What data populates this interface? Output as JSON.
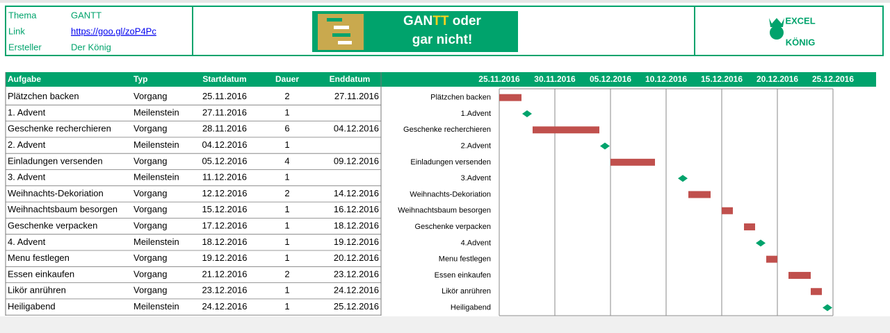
{
  "header": {
    "rows": [
      [
        "Thema",
        "GANTT"
      ],
      [
        "Link",
        "https://goo.gl/zoP4Pc"
      ],
      [
        "Ersteller",
        "Der König"
      ]
    ],
    "banner": {
      "line1": [
        "GAN",
        "TT",
        " oder"
      ],
      "line2": "gar nicht!"
    },
    "logo": [
      "EXCEL",
      "KÖNIG"
    ]
  },
  "table": {
    "columns": [
      "Aufgabe",
      "Typ",
      "Startdatum",
      "Dauer",
      "Enddatum"
    ],
    "rows": [
      [
        "Plätzchen backen",
        "Vorgang",
        "25.11.2016",
        2,
        "27.11.2016"
      ],
      [
        "1. Advent",
        "Meilenstein",
        "27.11.2016",
        1,
        null
      ],
      [
        "Geschenke recherchieren",
        "Vorgang",
        "28.11.2016",
        6,
        "04.12.2016"
      ],
      [
        "2. Advent",
        "Meilenstein",
        "04.12.2016",
        1,
        null
      ],
      [
        "Einladungen versenden",
        "Vorgang",
        "05.12.2016",
        4,
        "09.12.2016"
      ],
      [
        "3. Advent",
        "Meilenstein",
        "11.12.2016",
        1,
        null
      ],
      [
        "Weihnachts-Dekoriation",
        "Vorgang",
        "12.12.2016",
        2,
        "14.12.2016"
      ],
      [
        "Weihnachtsbaum besorgen",
        "Vorgang",
        "15.12.2016",
        1,
        "16.12.2016"
      ],
      [
        "Geschenke verpacken",
        "Vorgang",
        "17.12.2016",
        1,
        "18.12.2016"
      ],
      [
        "4. Advent",
        "Meilenstein",
        "18.12.2016",
        1,
        "19.12.2016"
      ],
      [
        "Menu festlegen",
        "Vorgang",
        "19.12.2016",
        1,
        "20.12.2016"
      ],
      [
        "Essen einkaufen",
        "Vorgang",
        "21.12.2016",
        2,
        "23.12.2016"
      ],
      [
        "Likör anrühren",
        "Vorgang",
        "23.12.2016",
        1,
        "24.12.2016"
      ],
      [
        "Heiligabend",
        "Meilenstein",
        "24.12.2016",
        1,
        "25.12.2016"
      ]
    ]
  },
  "chart_data": {
    "type": "gantt",
    "categories": [
      "Plätzchen backen",
      "1.Advent",
      "Geschenke recherchieren",
      "2.Advent",
      "Einladungen versenden",
      "3.Advent",
      "Weihnachts-Dekoriation",
      "Weihnachtsbaum besorgen",
      "Geschenke verpacken",
      "4.Advent",
      "Menu festlegen",
      "Essen einkaufen",
      "Likör anrühren",
      "Heiligabend"
    ],
    "starts": [
      "25.11.2016",
      "27.11.2016",
      "28.11.2016",
      "04.12.2016",
      "05.12.2016",
      "11.12.2016",
      "12.12.2016",
      "15.12.2016",
      "17.12.2016",
      "18.12.2016",
      "19.12.2016",
      "21.12.2016",
      "23.12.2016",
      "24.12.2016"
    ],
    "durations": [
      2,
      1,
      6,
      1,
      4,
      1,
      2,
      1,
      1,
      1,
      1,
      2,
      1,
      1
    ],
    "kinds": [
      "Vorgang",
      "Meilenstein",
      "Vorgang",
      "Meilenstein",
      "Vorgang",
      "Meilenstein",
      "Vorgang",
      "Vorgang",
      "Vorgang",
      "Meilenstein",
      "Vorgang",
      "Vorgang",
      "Vorgang",
      "Meilenstein"
    ],
    "bar_kind": "Vorgang",
    "bar_color": "#c0504d",
    "milestone_color": "#00a36c",
    "xlim": [
      "25.11.2016",
      "25.12.2016"
    ],
    "xticks": [
      "25.11.2016",
      "30.11.2016",
      "05.12.2016",
      "10.12.2016",
      "15.12.2016",
      "20.12.2016",
      "25.12.2016"
    ],
    "grid": true
  }
}
